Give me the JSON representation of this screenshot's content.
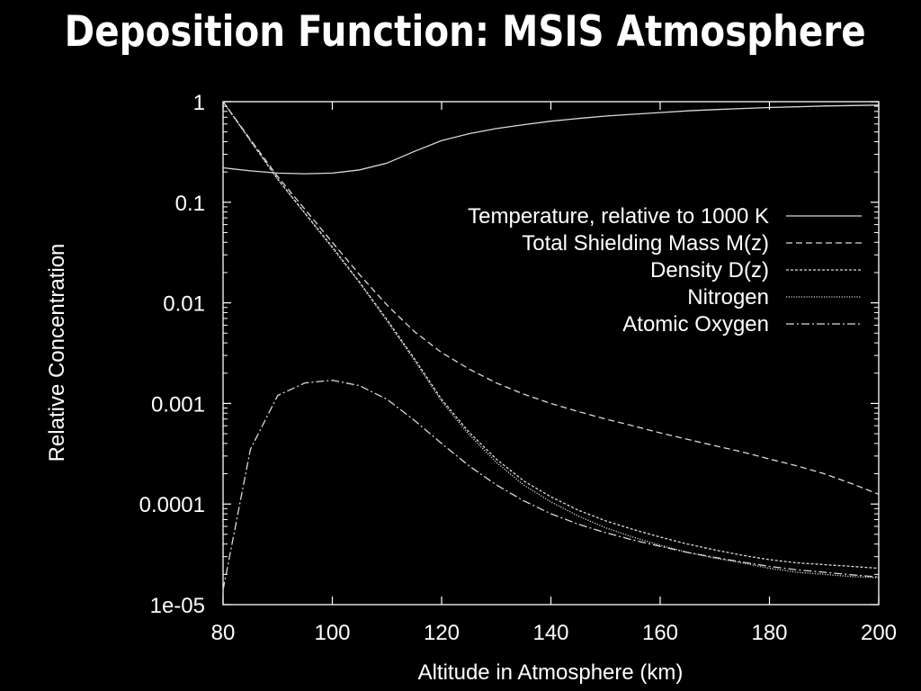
{
  "slide": {
    "title": "Deposition Function: MSIS Atmosphere"
  },
  "colors": {
    "background": "#000000",
    "foreground": "#ffffff",
    "lines": "#d9d9d9"
  },
  "chart_data": {
    "type": "line",
    "title": "",
    "xlabel": "Altitude in Atmosphere (km)",
    "ylabel": "Relative Concentration",
    "xlim": [
      80,
      200
    ],
    "ylim": [
      1e-05,
      1
    ],
    "yscale": "log",
    "xticks": [
      80,
      100,
      120,
      140,
      160,
      180,
      200
    ],
    "xtick_labels": [
      "80",
      "100",
      "120",
      "140",
      "160",
      "180",
      "200"
    ],
    "yticks": [
      1,
      0.1,
      0.01,
      0.001,
      0.0001,
      1e-05
    ],
    "ytick_labels": [
      "1",
      "0.1",
      "0.01",
      "0.001",
      "0.0001",
      "1e-05"
    ],
    "grid": false,
    "legend_position": "top-right",
    "x": [
      80,
      85,
      90,
      95,
      100,
      105,
      110,
      115,
      120,
      125,
      130,
      135,
      140,
      145,
      150,
      155,
      160,
      165,
      170,
      175,
      180,
      185,
      190,
      195,
      200
    ],
    "series": [
      {
        "name": "Temperature, relative to 1000 K",
        "dash": "solid",
        "values": [
          0.22,
          0.205,
          0.195,
          0.192,
          0.195,
          0.21,
          0.245,
          0.32,
          0.41,
          0.48,
          0.54,
          0.59,
          0.64,
          0.68,
          0.72,
          0.75,
          0.78,
          0.81,
          0.835,
          0.855,
          0.875,
          0.89,
          0.905,
          0.915,
          0.925
        ]
      },
      {
        "name": "Total Shielding Mass M(z)",
        "dash": "dashed",
        "values": [
          1,
          0.42,
          0.18,
          0.085,
          0.04,
          0.019,
          0.0095,
          0.0052,
          0.0032,
          0.0022,
          0.0016,
          0.00124,
          0.001,
          0.00083,
          0.0007,
          0.0006,
          0.00051,
          0.00044,
          0.00038,
          0.00033,
          0.00028,
          0.00024,
          0.0002,
          0.00016,
          0.000125
        ]
      },
      {
        "name": "Density D(z)",
        "dash": "short-dashed",
        "values": [
          1,
          0.41,
          0.17,
          0.078,
          0.036,
          0.016,
          0.0068,
          0.0028,
          0.0011,
          0.00052,
          0.00028,
          0.00017,
          0.000118,
          8.7e-05,
          6.8e-05,
          5.6e-05,
          4.7e-05,
          4e-05,
          3.5e-05,
          3.1e-05,
          2.8e-05,
          2.6e-05,
          2.5e-05,
          2.4e-05,
          2.3e-05
        ]
      },
      {
        "name": "Nitrogen",
        "dash": "dotted",
        "values": [
          1,
          0.41,
          0.168,
          0.077,
          0.035,
          0.0158,
          0.0066,
          0.0027,
          0.00105,
          0.00049,
          0.00026,
          0.000155,
          0.000105,
          7.6e-05,
          5.8e-05,
          4.7e-05,
          3.9e-05,
          3.3e-05,
          2.9e-05,
          2.6e-05,
          2.3e-05,
          2.1e-05,
          2e-05,
          1.9e-05,
          1.85e-05
        ]
      },
      {
        "name": "Atomic Oxygen",
        "dash": "dash-dot",
        "values": [
          1.4e-05,
          0.00035,
          0.0012,
          0.0016,
          0.0017,
          0.0015,
          0.0011,
          0.00068,
          0.0004,
          0.00024,
          0.000155,
          0.000108,
          8e-05,
          6.3e-05,
          5.2e-05,
          4.4e-05,
          3.8e-05,
          3.3e-05,
          2.95e-05,
          2.65e-05,
          2.4e-05,
          2.22e-05,
          2.1e-05,
          1.98e-05,
          1.88e-05
        ]
      }
    ]
  }
}
